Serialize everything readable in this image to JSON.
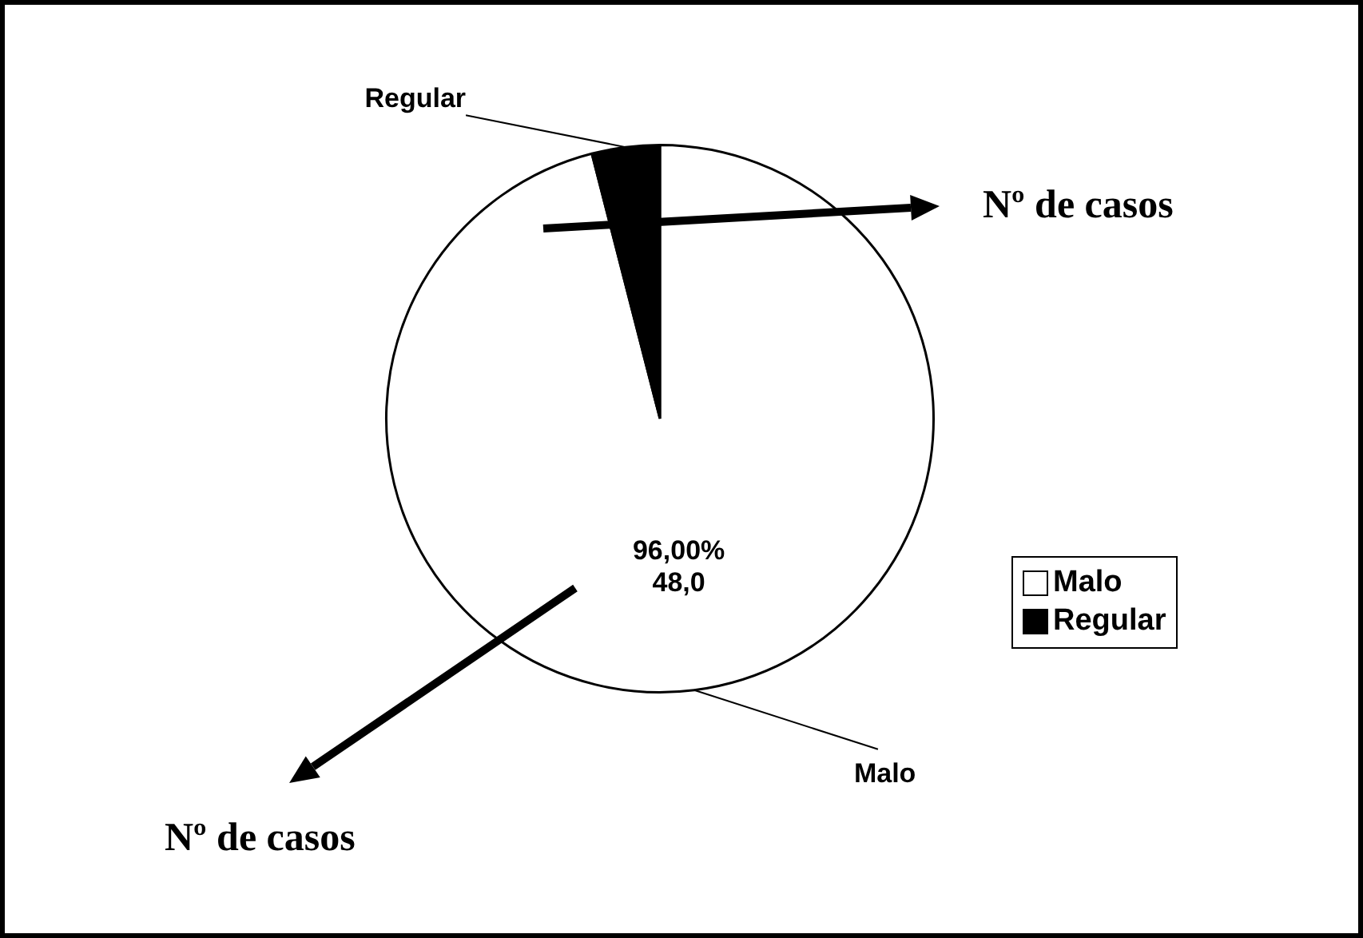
{
  "chart_data": {
    "type": "pie",
    "categories": [
      "Malo",
      "Regular"
    ],
    "values": [
      96,
      4
    ],
    "colors": [
      "#ffffff",
      "#000000"
    ],
    "value_labels": [
      "96,00%\n48,0",
      null
    ],
    "legend": "right",
    "annotations": [
      "Nº de casos",
      "Nº de casos"
    ]
  }
}
